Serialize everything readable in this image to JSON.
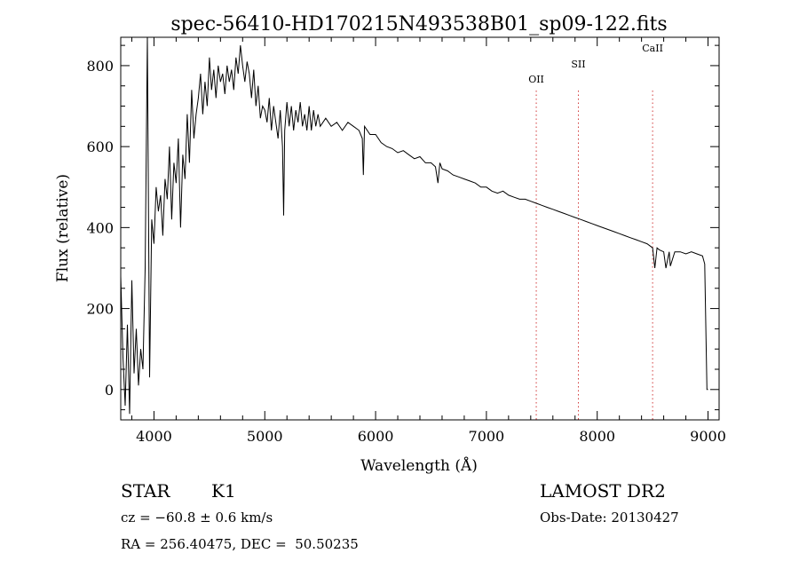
{
  "chart_data": {
    "type": "line",
    "title": "spec-56410-HD170215N493538B01_sp09-122.fits",
    "xlabel": "Wavelength (Å)",
    "ylabel": "Flux (relative)",
    "xlim": [
      3700,
      9100
    ],
    "ylim": [
      -75,
      870
    ],
    "x_ticks": [
      4000,
      5000,
      6000,
      7000,
      8000,
      9000
    ],
    "y_ticks": [
      0,
      200,
      400,
      600,
      800
    ],
    "grid": false,
    "series": [
      {
        "x": [
          3700,
          3720,
          3740,
          3760,
          3780,
          3800,
          3820,
          3840,
          3860,
          3880,
          3900,
          3920,
          3940,
          3960,
          3980,
          4000,
          4020,
          4040,
          4060,
          4080,
          4100,
          4120,
          4140,
          4160,
          4180,
          4200,
          4220,
          4240,
          4260,
          4280,
          4300,
          4320,
          4340,
          4360,
          4380,
          4400,
          4420,
          4440,
          4460,
          4480,
          4500,
          4520,
          4540,
          4560,
          4580,
          4600,
          4620,
          4640,
          4660,
          4680,
          4700,
          4720,
          4740,
          4760,
          4780,
          4800,
          4820,
          4840,
          4860,
          4880,
          4900,
          4920,
          4940,
          4960,
          4980,
          5000,
          5020,
          5040,
          5060,
          5080,
          5100,
          5120,
          5140,
          5160,
          5170,
          5180,
          5200,
          5220,
          5240,
          5260,
          5280,
          5300,
          5320,
          5340,
          5360,
          5380,
          5400,
          5420,
          5440,
          5460,
          5480,
          5500,
          5550,
          5600,
          5650,
          5700,
          5750,
          5800,
          5850,
          5880,
          5890,
          5900,
          5950,
          6000,
          6050,
          6100,
          6150,
          6200,
          6250,
          6300,
          6350,
          6400,
          6450,
          6500,
          6540,
          6563,
          6580,
          6600,
          6650,
          6700,
          6750,
          6800,
          6850,
          6900,
          6950,
          7000,
          7050,
          7100,
          7150,
          7200,
          7250,
          7300,
          7350,
          7400,
          7450,
          7500,
          7550,
          7600,
          7650,
          7700,
          7750,
          7800,
          7850,
          7900,
          7950,
          8000,
          8050,
          8100,
          8150,
          8200,
          8250,
          8300,
          8350,
          8400,
          8450,
          8500,
          8520,
          8540,
          8560,
          8600,
          8620,
          8650,
          8660,
          8700,
          8750,
          8800,
          8850,
          8900,
          8950,
          8970,
          8990,
          9000
        ],
        "y": [
          280,
          80,
          -40,
          160,
          -60,
          270,
          40,
          150,
          10,
          100,
          50,
          300,
          870,
          30,
          420,
          360,
          500,
          440,
          480,
          380,
          520,
          470,
          600,
          420,
          560,
          510,
          620,
          400,
          580,
          520,
          680,
          560,
          740,
          620,
          680,
          720,
          780,
          680,
          760,
          700,
          820,
          740,
          790,
          720,
          800,
          760,
          780,
          730,
          800,
          760,
          790,
          740,
          820,
          780,
          850,
          800,
          760,
          810,
          780,
          720,
          790,
          700,
          750,
          670,
          700,
          690,
          660,
          720,
          640,
          700,
          660,
          620,
          690,
          600,
          430,
          640,
          710,
          650,
          700,
          640,
          690,
          660,
          710,
          650,
          680,
          640,
          700,
          640,
          690,
          650,
          680,
          650,
          670,
          650,
          660,
          640,
          660,
          650,
          640,
          620,
          530,
          650,
          630,
          630,
          610,
          600,
          595,
          585,
          590,
          580,
          570,
          575,
          560,
          560,
          550,
          510,
          560,
          545,
          540,
          530,
          525,
          520,
          515,
          510,
          500,
          500,
          490,
          485,
          490,
          480,
          475,
          470,
          470,
          465,
          460,
          455,
          450,
          445,
          440,
          435,
          430,
          425,
          420,
          415,
          410,
          405,
          400,
          395,
          390,
          385,
          380,
          375,
          370,
          365,
          360,
          350,
          300,
          350,
          345,
          340,
          300,
          340,
          305,
          340,
          340,
          335,
          340,
          335,
          330,
          310,
          0,
          0
        ]
      }
    ],
    "annotations": [
      {
        "label": "OII",
        "x": 7450
      },
      {
        "label": "SII",
        "x": 7830
      },
      {
        "label": "CaII",
        "x": 8500
      }
    ]
  },
  "info": {
    "class_label": "STAR",
    "subclass": "K1",
    "survey": "LAMOST DR2",
    "cz": "cz = −60.8 ± 0.6 km/s",
    "obs_date": "Obs-Date: 20130427",
    "coords": "RA = 256.40475, DEC =  50.50235"
  }
}
